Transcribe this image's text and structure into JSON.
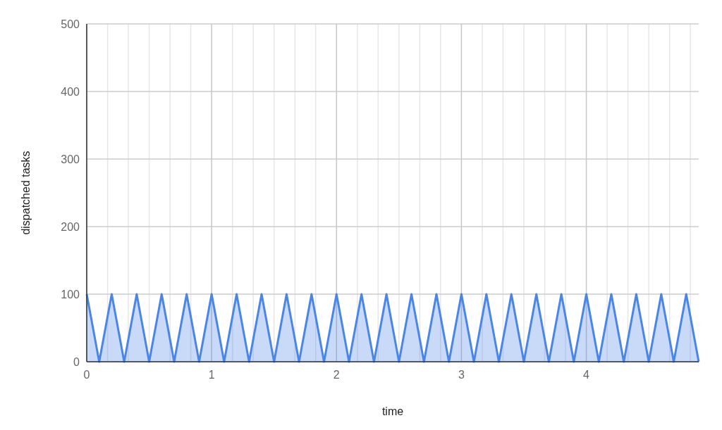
{
  "chart_data": {
    "type": "area",
    "xlabel": "time",
    "ylabel": "dispatched tasks",
    "x": [
      0,
      0.1,
      0.2,
      0.3,
      0.4,
      0.5,
      0.6,
      0.7,
      0.8,
      0.9,
      1,
      1.1,
      1.2,
      1.3,
      1.4,
      1.5,
      1.6,
      1.7,
      1.8,
      1.9,
      2,
      2.1,
      2.2,
      2.3,
      2.4,
      2.5,
      2.6,
      2.7,
      2.8,
      2.9,
      3,
      3.1,
      3.2,
      3.3,
      3.4,
      3.5,
      3.6,
      3.7,
      3.8,
      3.9,
      4,
      4.1,
      4.2,
      4.3,
      4.4,
      4.5,
      4.6,
      4.7,
      4.8,
      4.9
    ],
    "series": [
      {
        "color": "#4a86e8",
        "values": [
          100,
          0,
          100,
          0,
          100,
          0,
          100,
          0,
          100,
          0,
          100,
          0,
          100,
          0,
          100,
          0,
          100,
          0,
          100,
          0,
          100,
          0,
          100,
          0,
          100,
          0,
          100,
          0,
          100,
          0,
          100,
          0,
          100,
          0,
          100,
          0,
          100,
          0,
          100,
          0,
          100,
          0,
          100,
          0,
          100,
          0,
          100,
          0,
          100,
          0
        ]
      }
    ],
    "xlim": [
      0,
      4.9
    ],
    "xticks": [
      0,
      {
        "value": 0.167,
        "label": null
      },
      {
        "value": 0.333,
        "label": null
      },
      {
        "value": 0.5,
        "label": null
      },
      {
        "value": 0.667,
        "label": null
      },
      {
        "value": 0.833,
        "label": null
      },
      1,
      {
        "value": 1.167,
        "label": null
      },
      {
        "value": 1.333,
        "label": null
      },
      {
        "value": 1.5,
        "label": null
      },
      {
        "value": 1.667,
        "label": null
      },
      {
        "value": 1.833,
        "label": null
      },
      2,
      {
        "value": 2.167,
        "label": null
      },
      {
        "value": 2.333,
        "label": null
      },
      {
        "value": 2.5,
        "label": null
      },
      {
        "value": 2.667,
        "label": null
      },
      {
        "value": 2.833,
        "label": null
      },
      3,
      {
        "value": 3.167,
        "label": null
      },
      {
        "value": 3.333,
        "label": null
      },
      {
        "value": 3.5,
        "label": null
      },
      {
        "value": 3.667,
        "label": null
      },
      {
        "value": 3.833,
        "label": null
      },
      4,
      {
        "value": 4.167,
        "label": null
      },
      {
        "value": 4.333,
        "label": null
      },
      {
        "value": 4.5,
        "label": null
      },
      {
        "value": 4.667,
        "label": null
      },
      {
        "value": 4.833,
        "label": null
      }
    ],
    "ylim": [
      0,
      500
    ],
    "yticks": [
      0,
      100,
      200,
      300,
      400,
      500
    ],
    "grid": true,
    "marker": "none",
    "line_style": "solid"
  }
}
